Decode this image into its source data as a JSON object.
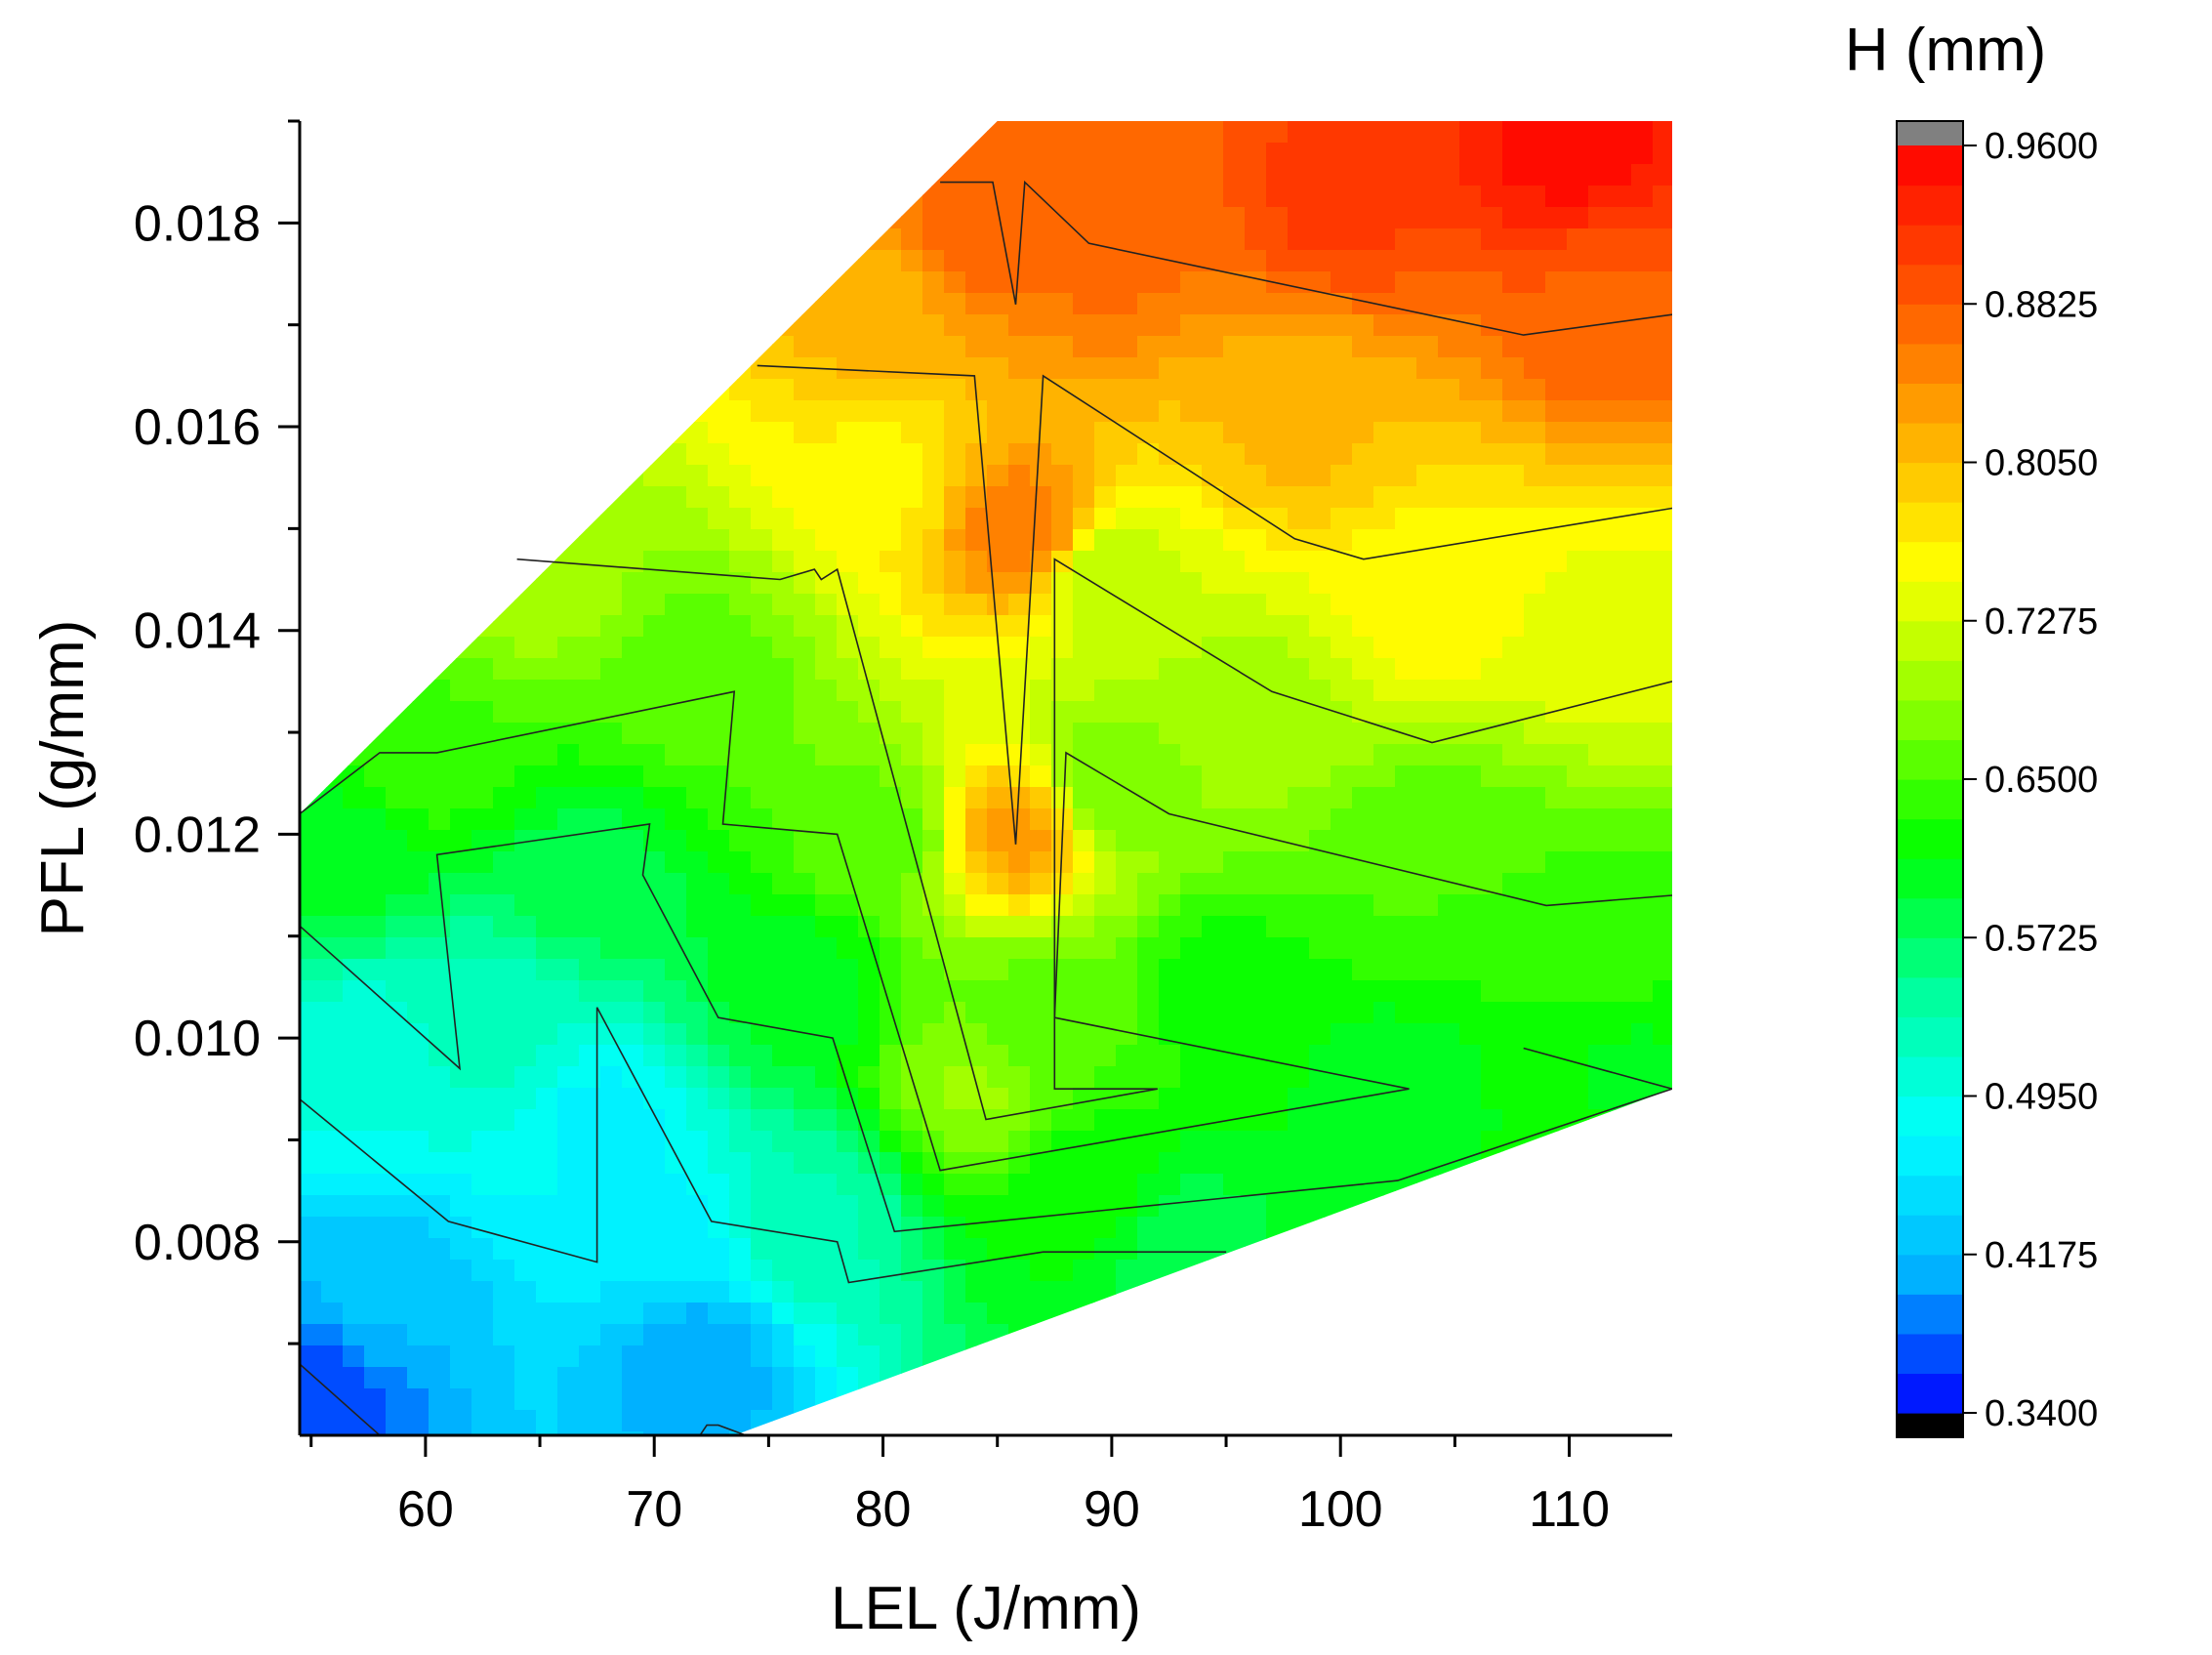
{
  "chart_data": {
    "type": "contour",
    "xlabel": "LEL (J/mm)",
    "ylabel": "PFL (g/mm)",
    "xlim": [
      54.5,
      114.5
    ],
    "ylim": [
      0.0061,
      0.019
    ],
    "x_ticks": [
      60,
      70,
      80,
      90,
      100,
      110
    ],
    "x_tick_labels": [
      "60",
      "70",
      "80",
      "90",
      "100",
      "110"
    ],
    "y_ticks": [
      0.008,
      0.01,
      0.012,
      0.014,
      0.016,
      0.018
    ],
    "y_tick_labels": [
      "0.008",
      "0.010",
      "0.012",
      "0.014",
      "0.016",
      "0.018"
    ],
    "colorbar": {
      "title": "H (mm)",
      "min": 0.34,
      "max": 0.96,
      "tick_values": [
        0.96,
        0.8825,
        0.805,
        0.7275,
        0.65,
        0.5725,
        0.495,
        0.4175,
        0.34
      ],
      "tick_labels": [
        "0.9600",
        "0.8825",
        "0.8050",
        "0.7275",
        "0.6500",
        "0.5725",
        "0.4950",
        "0.4175",
        "0.3400"
      ],
      "colormap": [
        "#0000ff",
        "#00b4ff",
        "#00ffff",
        "#00ff9a",
        "#00ff00",
        "#8cff00",
        "#ffff00",
        "#ffaa00",
        "#ff5000",
        "#ff0000"
      ],
      "under_color": "#000000",
      "over_color": "#808080",
      "levels": 32
    },
    "hull": [
      [
        54.5,
        0.0061
      ],
      [
        73.5,
        0.0061
      ],
      [
        114.5,
        0.0095
      ],
      [
        114.5,
        0.019
      ],
      [
        85,
        0.019
      ],
      [
        54.5,
        0.0122
      ]
    ],
    "samples": [
      {
        "x": 55,
        "y": 0.0065,
        "h": 0.36
      },
      {
        "x": 58,
        "y": 0.0075,
        "h": 0.42
      },
      {
        "x": 57,
        "y": 0.0098,
        "h": 0.5
      },
      {
        "x": 56,
        "y": 0.0118,
        "h": 0.6
      },
      {
        "x": 60,
        "y": 0.0128,
        "h": 0.65
      },
      {
        "x": 63,
        "y": 0.0102,
        "h": 0.52
      },
      {
        "x": 68,
        "y": 0.0092,
        "h": 0.47
      },
      {
        "x": 70,
        "y": 0.008,
        "h": 0.46
      },
      {
        "x": 71.8,
        "y": 0.0068,
        "h": 0.4
      },
      {
        "x": 67,
        "y": 0.0115,
        "h": 0.58
      },
      {
        "x": 72,
        "y": 0.0136,
        "h": 0.66
      },
      {
        "x": 65,
        "y": 0.0145,
        "h": 0.7
      },
      {
        "x": 76,
        "y": 0.0105,
        "h": 0.6
      },
      {
        "x": 77,
        "y": 0.0082,
        "h": 0.53
      },
      {
        "x": 80,
        "y": 0.012,
        "h": 0.66
      },
      {
        "x": 80,
        "y": 0.0155,
        "h": 0.76
      },
      {
        "x": 80,
        "y": 0.0172,
        "h": 0.82
      },
      {
        "x": 84,
        "y": 0.0095,
        "h": 0.69
      },
      {
        "x": 84.5,
        "y": 0.018,
        "h": 0.88
      },
      {
        "x": 85.8,
        "y": 0.012,
        "h": 0.83
      },
      {
        "x": 86,
        "y": 0.015,
        "h": 0.86
      },
      {
        "x": 87,
        "y": 0.0102,
        "h": 0.66
      },
      {
        "x": 89,
        "y": 0.0085,
        "h": 0.62
      },
      {
        "x": 90,
        "y": 0.0125,
        "h": 0.67
      },
      {
        "x": 90,
        "y": 0.0145,
        "h": 0.71
      },
      {
        "x": 90,
        "y": 0.0178,
        "h": 0.87
      },
      {
        "x": 93,
        "y": 0.008,
        "h": 0.58
      },
      {
        "x": 95,
        "y": 0.0105,
        "h": 0.62
      },
      {
        "x": 96,
        "y": 0.0132,
        "h": 0.7
      },
      {
        "x": 98,
        "y": 0.016,
        "h": 0.81
      },
      {
        "x": 100,
        "y": 0.0183,
        "h": 0.91
      },
      {
        "x": 102,
        "y": 0.0095,
        "h": 0.6
      },
      {
        "x": 104,
        "y": 0.0118,
        "h": 0.65
      },
      {
        "x": 104,
        "y": 0.0143,
        "h": 0.76
      },
      {
        "x": 110,
        "y": 0.0188,
        "h": 0.95
      },
      {
        "x": 112,
        "y": 0.0171,
        "h": 0.88
      },
      {
        "x": 112,
        "y": 0.014,
        "h": 0.74
      },
      {
        "x": 112,
        "y": 0.011,
        "h": 0.64
      },
      {
        "x": 113,
        "y": 0.0097,
        "h": 0.61
      }
    ],
    "contour_lines": [
      [
        [
          54.5,
          0.0068
        ],
        [
          58,
          0.0061
        ],
        [
          72,
          0.0061
        ],
        [
          72.3,
          0.0062
        ],
        [
          72.8,
          0.0062
        ],
        [
          74,
          0.0061
        ]
      ],
      [
        [
          54.5,
          0.0094
        ],
        [
          61,
          0.0082
        ],
        [
          67.5,
          0.0078
        ],
        [
          67.5,
          0.0103
        ],
        [
          72.5,
          0.0082
        ],
        [
          78,
          0.008
        ],
        [
          78.5,
          0.0076
        ],
        [
          87,
          0.0079
        ],
        [
          95,
          0.0079
        ]
      ],
      [
        [
          54.5,
          0.0111
        ],
        [
          61.5,
          0.0097
        ],
        [
          60.5,
          0.0118
        ],
        [
          69.8,
          0.0121
        ],
        [
          69.5,
          0.0116
        ],
        [
          72.8,
          0.0102
        ],
        [
          77.8,
          0.01
        ],
        [
          80.5,
          0.0081
        ],
        [
          102.5,
          0.0086
        ],
        [
          114.5,
          0.0095
        ],
        [
          108,
          0.0099
        ]
      ],
      [
        [
          54.5,
          0.0122
        ],
        [
          58,
          0.0128
        ],
        [
          60.5,
          0.0128
        ],
        [
          73.5,
          0.0134
        ],
        [
          73,
          0.0121
        ],
        [
          78,
          0.012
        ],
        [
          82.5,
          0.0087
        ],
        [
          103,
          0.0095
        ],
        [
          87.5,
          0.0102
        ],
        [
          88,
          0.0128
        ],
        [
          92.5,
          0.0122
        ],
        [
          109,
          0.0113
        ],
        [
          114.5,
          0.0114
        ]
      ],
      [
        [
          64,
          0.0147
        ],
        [
          75.5,
          0.0145
        ],
        [
          77,
          0.0146
        ],
        [
          77.3,
          0.0145
        ],
        [
          78,
          0.0146
        ],
        [
          84.5,
          0.0092
        ],
        [
          92,
          0.0095
        ],
        [
          87.5,
          0.0095
        ],
        [
          87.5,
          0.0147
        ],
        [
          97,
          0.0134
        ],
        [
          104,
          0.0129
        ],
        [
          114.5,
          0.0135
        ]
      ],
      [
        [
          74.5,
          0.0166
        ],
        [
          84,
          0.0165
        ],
        [
          85.8,
          0.0119
        ],
        [
          87,
          0.0165
        ],
        [
          98,
          0.0149
        ],
        [
          101,
          0.0147
        ],
        [
          114.5,
          0.0152
        ]
      ],
      [
        [
          82.5,
          0.0184
        ],
        [
          84.8,
          0.0184
        ],
        [
          85.8,
          0.0172
        ],
        [
          86.2,
          0.0184
        ],
        [
          89,
          0.0178
        ],
        [
          108,
          0.0169
        ],
        [
          114.5,
          0.0171
        ]
      ]
    ]
  }
}
